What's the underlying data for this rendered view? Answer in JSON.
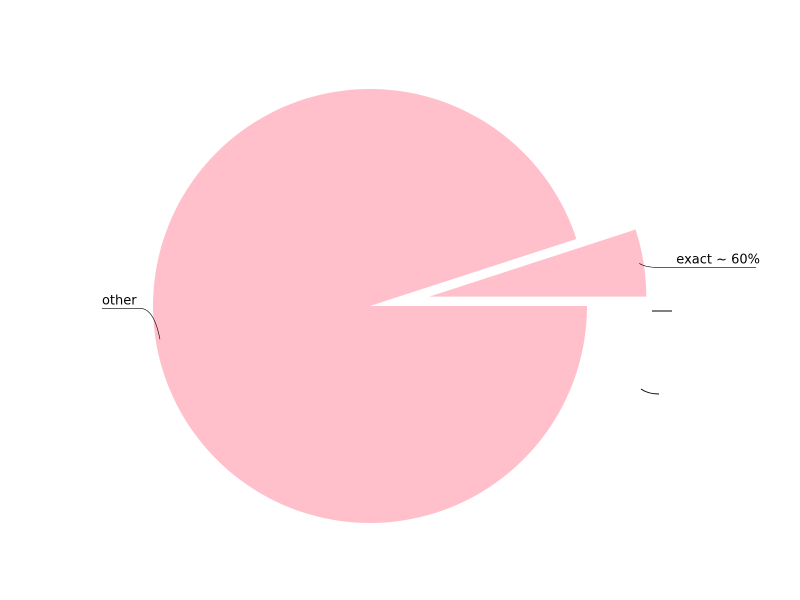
{
  "chart_data": {
    "type": "pie",
    "title": "",
    "slices": [
      {
        "label": "other",
        "value": 95,
        "color": "#ffc0cb",
        "exploded": false
      },
      {
        "label": "exact ~ 60%",
        "value": 5,
        "color": "#ffc0cb",
        "exploded": true
      }
    ],
    "start_angle_deg": 0,
    "direction": "clockwise",
    "legend": "none"
  }
}
